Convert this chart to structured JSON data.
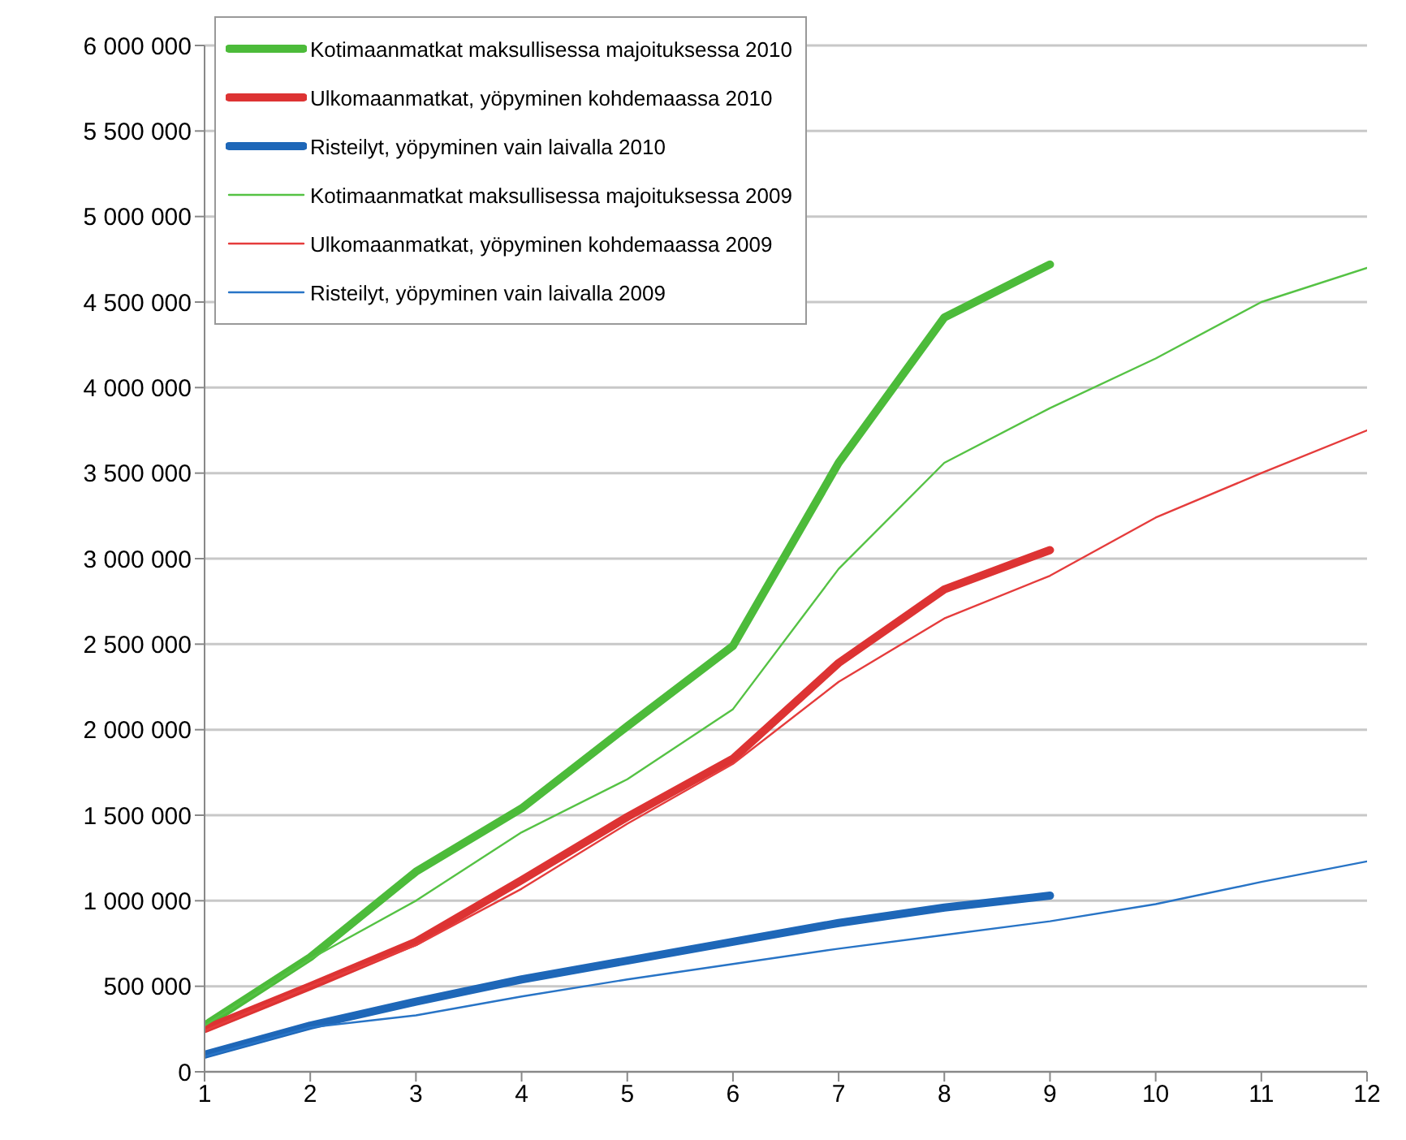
{
  "chart_data": {
    "type": "line",
    "x": [
      1,
      2,
      3,
      4,
      5,
      6,
      7,
      8,
      9,
      10,
      11,
      12
    ],
    "xlim": [
      1,
      12
    ],
    "xticks": [
      1,
      2,
      3,
      4,
      5,
      6,
      7,
      8,
      9,
      10,
      11,
      12
    ],
    "ylim": [
      0,
      6000000
    ],
    "yticks": [
      {
        "value": 0,
        "label": "0"
      },
      {
        "value": 500000,
        "label": "500 000"
      },
      {
        "value": 1000000,
        "label": "1 000 000"
      },
      {
        "value": 1500000,
        "label": "1 500 000"
      },
      {
        "value": 2000000,
        "label": "2 000 000"
      },
      {
        "value": 2500000,
        "label": "2 500 000"
      },
      {
        "value": 3000000,
        "label": "3 000 000"
      },
      {
        "value": 3500000,
        "label": "3 500 000"
      },
      {
        "value": 4000000,
        "label": "4 000 000"
      },
      {
        "value": 4500000,
        "label": "4 500 000"
      },
      {
        "value": 5000000,
        "label": "5 000 000"
      },
      {
        "value": 5500000,
        "label": "5 500 000"
      },
      {
        "value": 6000000,
        "label": "6 000 000"
      }
    ],
    "grid": "y",
    "legend": "top left",
    "marker": "none",
    "line_style": "solid",
    "series": [
      {
        "name": "Kotimaanmatkat maksullisessa majoituksessa 2010",
        "color": "#4cbb3a",
        "values": [
          270000,
          670000,
          1170000,
          1540000,
          2020000,
          2490000,
          3560000,
          4410000,
          4720000,
          null,
          null,
          null
        ]
      },
      {
        "name": "Ulkomaanmatkat, yöpyminen kohdemaassa 2010",
        "color": "#dd3333",
        "values": [
          250000,
          500000,
          760000,
          1120000,
          1490000,
          1830000,
          2390000,
          2820000,
          3050000,
          null,
          null,
          null
        ]
      },
      {
        "name": "Risteilyt, yöpyminen vain laivalla 2010",
        "color": "#1e67b8",
        "values": [
          100000,
          270000,
          410000,
          540000,
          650000,
          760000,
          870000,
          960000,
          1030000,
          null,
          null,
          null
        ]
      },
      {
        "name": "Kotimaanmatkat maksullisessa majoituksessa 2009",
        "color": "#55c244",
        "values": [
          270000,
          660000,
          1000000,
          1400000,
          1710000,
          2120000,
          2940000,
          3560000,
          3880000,
          4170000,
          4500000,
          4700000
        ]
      },
      {
        "name": "Ulkomaanmatkat, yöpyminen kohdemaassa 2009",
        "color": "#e53c3c",
        "values": [
          240000,
          500000,
          740000,
          1070000,
          1450000,
          1800000,
          2280000,
          2650000,
          2900000,
          3240000,
          3500000,
          3750000
        ]
      },
      {
        "name": "Risteilyt, yöpyminen vain laivalla 2009",
        "color": "#2874c6",
        "values": [
          90000,
          260000,
          330000,
          440000,
          540000,
          630000,
          720000,
          800000,
          880000,
          980000,
          1110000,
          1230000
        ]
      }
    ]
  }
}
